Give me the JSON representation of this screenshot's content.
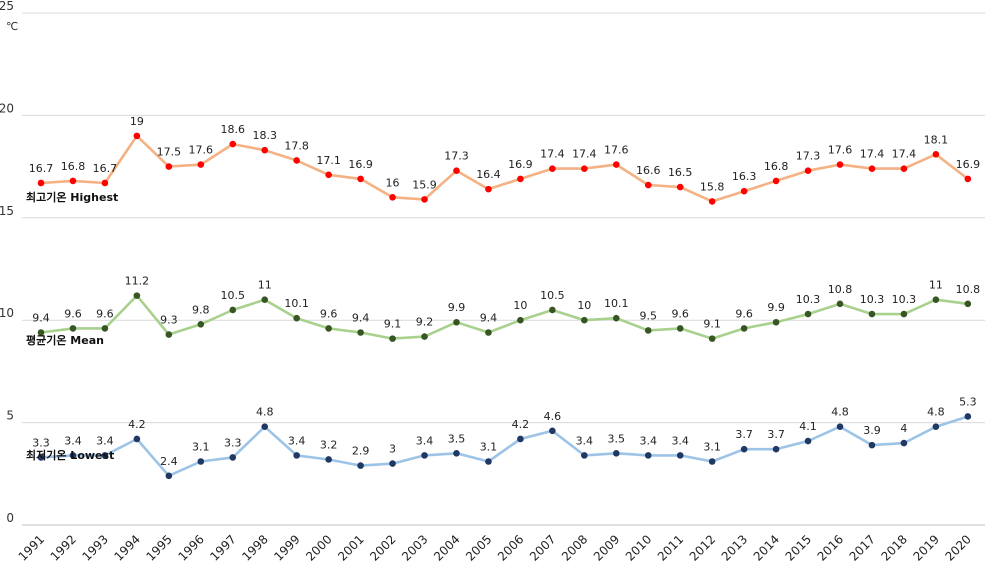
{
  "chart_data": {
    "type": "line",
    "unit_label": "℃",
    "ylim": [
      0,
      25
    ],
    "yticks": [
      "0",
      "5",
      "10",
      "15",
      "20",
      "25"
    ],
    "grid": true,
    "legend": "inline-left",
    "categories": [
      "1991",
      "1992",
      "1993",
      "1994",
      "1995",
      "1996",
      "1997",
      "1998",
      "1999",
      "2000",
      "2001",
      "2002",
      "2003",
      "2004",
      "2005",
      "2006",
      "2007",
      "2008",
      "2009",
      "2010",
      "2011",
      "2012",
      "2013",
      "2014",
      "2015",
      "2016",
      "2017",
      "2018",
      "2019",
      "2020"
    ],
    "series": [
      {
        "name": "최고기온 Highest",
        "line_color": "#f4b183",
        "marker_color": "#ff0000",
        "values": [
          16.7,
          16.8,
          16.7,
          19,
          17.5,
          17.6,
          18.6,
          18.3,
          17.8,
          17.1,
          16.9,
          16,
          15.9,
          17.3,
          16.4,
          16.9,
          17.4,
          17.4,
          17.6,
          16.6,
          16.5,
          15.8,
          16.3,
          16.8,
          17.3,
          17.6,
          17.4,
          17.4,
          18.1,
          16.9
        ],
        "labels": [
          "16.7",
          "16.8",
          "16.7",
          "19",
          "17.5",
          "17.6",
          "18.6",
          "18.3",
          "17.8",
          "17.1",
          "16.9",
          "16",
          "15.9",
          "17.3",
          "16.4",
          "16.9",
          "17.4",
          "17.4",
          "17.6",
          "16.6",
          "16.5",
          "15.8",
          "16.3",
          "16.8",
          "17.3",
          "17.6",
          "17.4",
          "17.4",
          "18.1",
          "16.9"
        ]
      },
      {
        "name": "평균기온 Mean",
        "line_color": "#a9d18e",
        "marker_color": "#375623",
        "values": [
          9.4,
          9.6,
          9.6,
          11.2,
          9.3,
          9.8,
          10.5,
          11,
          10.1,
          9.6,
          9.4,
          9.1,
          9.2,
          9.9,
          9.4,
          10,
          10.5,
          10,
          10.1,
          9.5,
          9.6,
          9.1,
          9.6,
          9.9,
          10.3,
          10.8,
          10.3,
          10.3,
          11,
          10.8
        ],
        "labels": [
          "9.4",
          "9.6",
          "9.6",
          "11.2",
          "9.3",
          "9.8",
          "10.5",
          "11",
          "10.1",
          "9.6",
          "9.4",
          "9.1",
          "9.2",
          "9.9",
          "9.4",
          "10",
          "10.5",
          "10",
          "10.1",
          "9.5",
          "9.6",
          "9.1",
          "9.6",
          "9.9",
          "10.3",
          "10.8",
          "10.3",
          "10.3",
          "11",
          "10.8"
        ]
      },
      {
        "name": "최저기온 Lowest",
        "line_color": "#9dc3e6",
        "marker_color": "#1f3864",
        "values": [
          3.3,
          3.4,
          3.4,
          4.2,
          2.4,
          3.1,
          3.3,
          4.8,
          3.4,
          3.2,
          2.9,
          3,
          3.4,
          3.5,
          3.1,
          4.2,
          4.6,
          3.4,
          3.5,
          3.4,
          3.4,
          3.1,
          3.7,
          3.7,
          4.1,
          4.8,
          3.9,
          4,
          4.8,
          5.3
        ],
        "labels": [
          "3.3",
          "3.4",
          "3.4",
          "4.2",
          "2.4",
          "3.1",
          "3.3",
          "4.8",
          "3.4",
          "3.2",
          "2.9",
          "3",
          "3.4",
          "3.5",
          "3.1",
          "4.2",
          "4.6",
          "3.4",
          "3.5",
          "3.4",
          "3.4",
          "3.1",
          "3.7",
          "3.7",
          "4.1",
          "4.8",
          "3.9",
          "4",
          "4.8",
          "5.3"
        ]
      }
    ]
  }
}
